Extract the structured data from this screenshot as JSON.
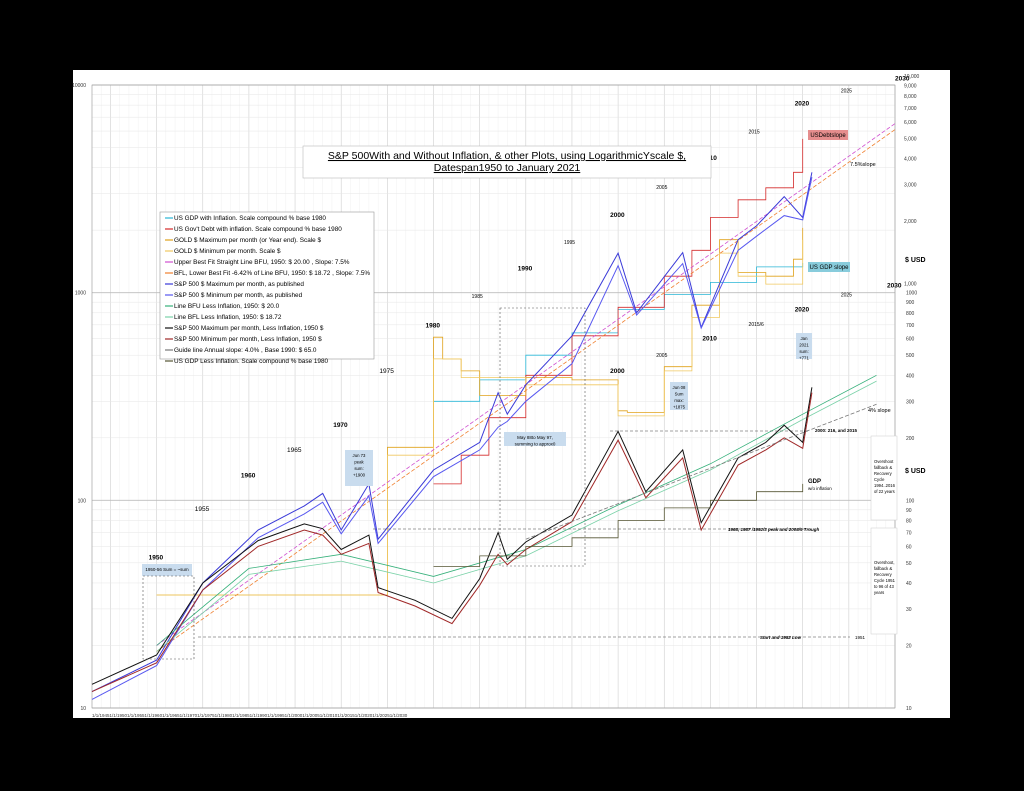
{
  "chart_data": {
    "type": "line",
    "title_line1": "S&P 500With and Without Inflation, & other Plots, using LogarithmicYscale $,",
    "title_line2": "Datespan1950 to January 2021",
    "y_scale": "log",
    "ylim": [
      10,
      10000
    ],
    "xlim": [
      1943,
      2030
    ],
    "grid": true,
    "legend_position": "top-left",
    "y_unit_label": "$ USD",
    "left_ticks": [
      "10000",
      "1000",
      "100",
      "10"
    ],
    "right_ticks_high": [
      "10,000",
      "9,000",
      "8,000",
      "7,000",
      "6,000",
      "5,000",
      "4,000",
      "3,000",
      "2,000",
      "1,000"
    ],
    "right_ticks_low": [
      "1000",
      "900",
      "800",
      "700",
      "600",
      "500",
      "400",
      "300",
      "200",
      "100",
      "90",
      "80",
      "70",
      "60",
      "50",
      "40",
      "30",
      "20",
      "10"
    ],
    "x_tick_text": "1/1/19451/1/19501/1/19551/1/19601/1/19651/1/19701/1/19751/1/19801/1/19851/1/19901/1/19951/1/20001/1/20051/1/20101/1/20151/1/20201/1/20251/1/2030",
    "series": [
      {
        "name": "US GDP with Inflation. Scale compound % base 1980",
        "color": "#29b6d6",
        "x": [
          1980,
          1985,
          1990,
          1995,
          2000,
          2005,
          2010,
          2015,
          2020
        ],
        "y": [
          300,
          380,
          500,
          640,
          830,
          980,
          1120,
          1330,
          1390
        ]
      },
      {
        "name": "US Gov't Debt with inflation. Scale compound % base 1980",
        "color": "#d42a2a",
        "x": [
          1980,
          1983,
          1986,
          1990,
          1995,
          2000,
          2005,
          2008,
          2010,
          2013,
          2016,
          2019,
          2020
        ],
        "y": [
          120,
          165,
          250,
          400,
          620,
          850,
          1200,
          1600,
          2300,
          2800,
          3200,
          3800,
          5500
        ]
      },
      {
        "name": "GOLD $ Maximum per month (or Year end). Scale $",
        "color": "#e0a21a",
        "x": [
          1950,
          1972,
          1975,
          1980,
          1981,
          1983,
          1985,
          1990,
          1995,
          2000,
          2001,
          2005,
          2008,
          2011,
          2013,
          2016,
          2019,
          2020
        ],
        "y": [
          35,
          35,
          180,
          610,
          480,
          420,
          320,
          390,
          380,
          270,
          265,
          440,
          870,
          1800,
          1250,
          1200,
          1450,
          2050
        ]
      },
      {
        "name": "GOLD $ Minimum per month. Scale $",
        "color": "#f0c860",
        "x": [
          1950,
          1972,
          1975,
          1980,
          1983,
          1990,
          2000,
          2005,
          2008,
          2011,
          2013,
          2016,
          2020
        ],
        "y": [
          35,
          35,
          165,
          480,
          390,
          360,
          255,
          420,
          760,
          1550,
          1200,
          1100,
          1800
        ]
      },
      {
        "name": "Upper Best Fit Straight Line BFU, 1950: $ 20.00 , Slope: 7.5%",
        "color": "#d050d0",
        "x": [
          1950,
          2030
        ],
        "y": [
          20.0,
          6520
        ]
      },
      {
        "name": "BFL, Lower Best Fit -6.42% of Line BFU, 1950: $ 18.72 , Slope: 7.5%",
        "color": "#f08030",
        "x": [
          1950,
          2030
        ],
        "y": [
          18.72,
          6100
        ]
      },
      {
        "name": "S&P 500 $ Maximum per month, as published",
        "color": "#3a3ad8",
        "x": [
          1943,
          1950,
          1955,
          1961,
          1966,
          1968,
          1970,
          1973,
          1974,
          1980,
          1985,
          1987,
          1988,
          1990,
          1995,
          2000,
          2002,
          2007,
          2009,
          2013,
          2015,
          2018,
          2020,
          2021
        ],
        "y": [
          12,
          17,
          40,
          72,
          94,
          108,
          72,
          120,
          65,
          140,
          190,
          330,
          260,
          360,
          620,
          1550,
          800,
          1560,
          680,
          1800,
          2100,
          2900,
          2300,
          3800
        ]
      },
      {
        "name": "S&P 500 $ Minimum per month, as published",
        "color": "#5858f0",
        "x": [
          1943,
          1950,
          1955,
          1961,
          1966,
          1968,
          1970,
          1973,
          1974,
          1980,
          1985,
          1987,
          1988,
          1990,
          1995,
          2000,
          2002,
          2007,
          2009,
          2013,
          2015,
          2018,
          2020,
          2021
        ],
        "y": [
          11,
          16,
          37,
          66,
          86,
          98,
          69,
          105,
          62,
          130,
          175,
          225,
          240,
          300,
          455,
          1350,
          780,
          1380,
          675,
          1600,
          1870,
          2350,
          2240,
          3600
        ]
      },
      {
        "name": "Line BFU Less Inflation, 1950: $ 20.0",
        "color": "#35b07a",
        "x": [
          1950,
          1960,
          1970,
          1980,
          1990,
          2000,
          2010,
          2020,
          2028
        ],
        "y": [
          20,
          47,
          55,
          43,
          58,
          95,
          150,
          260,
          400
        ]
      },
      {
        "name": "Line BFL Less Inflation, 1950: $ 18.72",
        "color": "#7ad2a8",
        "x": [
          1950,
          1960,
          1970,
          1980,
          1990,
          2000,
          2010,
          2020,
          2028
        ],
        "y": [
          18.72,
          44,
          51,
          40,
          54,
          89,
          140,
          245,
          375
        ]
      },
      {
        "name": "S&P 500 Maximum per month, Less Inflation, 1950 $",
        "color": "#111111",
        "x": [
          1943,
          1950,
          1955,
          1961,
          1966,
          1968,
          1970,
          1973,
          1974,
          1978,
          1982,
          1985,
          1987,
          1988,
          1990,
          1995,
          2000,
          2003,
          2007,
          2009,
          2013,
          2016,
          2018,
          2020,
          2021
        ],
        "y": [
          13,
          18,
          40,
          64,
          77,
          73,
          58,
          68,
          38,
          33,
          27,
          42,
          70,
          52,
          63,
          85,
          215,
          110,
          175,
          78,
          160,
          190,
          230,
          190,
          350
        ]
      },
      {
        "name": "S&P 500 Minimum per month, Less Inflation, 1950 $",
        "color": "#a02828",
        "x": [
          1943,
          1950,
          1955,
          1961,
          1966,
          1968,
          1970,
          1973,
          1974,
          1978,
          1982,
          1985,
          1987,
          1988,
          1990,
          1995,
          2000,
          2003,
          2007,
          2009,
          2013,
          2016,
          2018,
          2020,
          2021
        ],
        "y": [
          12,
          16.5,
          37,
          60,
          72,
          68,
          55,
          62,
          36,
          31,
          25.5,
          39,
          55,
          49,
          58,
          79,
          195,
          103,
          160,
          72,
          148,
          175,
          200,
          178,
          330
        ]
      },
      {
        "name": "Guide line Annual slope: 4.0% , Base 1990: $ 65.0",
        "color": "#777777",
        "dash": true,
        "x": [
          1990,
          2028
        ],
        "y": [
          65,
          290
        ]
      },
      {
        "name": "US GDP Less Inflation. Scale compound % base 1980",
        "color": "#555533",
        "x": [
          1980,
          1985,
          1990,
          1995,
          2000,
          2005,
          2010,
          2015,
          2020
        ],
        "y": [
          48,
          54,
          60,
          66,
          80,
          92,
          100,
          110,
          120
        ]
      }
    ],
    "annotations": {
      "decades_upper": [
        {
          "text": "1950",
          "x": 1950,
          "y": 52
        },
        {
          "text": "1955",
          "x": 1955,
          "y": 89
        },
        {
          "text": "1960",
          "x": 1960,
          "y": 129
        },
        {
          "text": "1965",
          "x": 1965,
          "y": 171
        },
        {
          "text": "1970",
          "x": 1970,
          "y": 225
        },
        {
          "text": "1975",
          "x": 1975,
          "y": 410
        },
        {
          "text": "1980",
          "x": 1980,
          "y": 680
        },
        {
          "text": "1985",
          "x": 1985,
          "y": 940
        },
        {
          "text": "1990",
          "x": 1990,
          "y": 1280
        },
        {
          "text": "1995",
          "x": 1995,
          "y": 1720
        },
        {
          "text": "2000",
          "x": 2000,
          "y": 2320
        },
        {
          "text": "2005",
          "x": 2005,
          "y": 3150
        },
        {
          "text": "2010",
          "x": 2010,
          "y": 4350
        },
        {
          "text": "2015",
          "x": 2015,
          "y": 5850
        },
        {
          "text": "2020",
          "x": 2020,
          "y": 7960
        },
        {
          "text": "2025",
          "x": 2025,
          "y": 9200
        },
        {
          "text": "2030",
          "x": 2030,
          "y": 10500
        }
      ],
      "decades_lower": [
        {
          "text": "2000",
          "x": 2000,
          "y": 410
        },
        {
          "text": "2005",
          "x": 2005,
          "y": 490
        },
        {
          "text": "2010",
          "x": 2010,
          "y": 590
        },
        {
          "text": "2015/6",
          "x": 2015,
          "y": 690
        },
        {
          "text": "2020",
          "x": 2020,
          "y": 810
        },
        {
          "text": "2025",
          "x": 2025,
          "y": 960
        },
        {
          "text": "2030",
          "x": 2030,
          "y": 1060
        }
      ],
      "usdebt_label": "USDebtslope",
      "slope75_label": "7.5%slope",
      "usgdp_label": "US GDP slope",
      "slope4_label": "4% slope",
      "gdp_noinf_line1": "GDP",
      "gdp_noinf_line2": "w/o inflation",
      "box_1950s": "1950-56 Sum = ~sum",
      "box_jun73": "Jun 73 peak sum: +1900",
      "box_may88": "May 88to May 97, summing to approx0",
      "box_jun08": "Jun 08 Sum max: +1875",
      "box_jan2021": "Jan 2021 sum: +771",
      "peak_line_text": "2000: 216, and 2015",
      "trough_line_text": "1968,  1987 /1992/3 peak  and 2008/9 Trough",
      "low_line_text": "Start and 1982 Low",
      "low_line_year": "1951",
      "overshoot_upper": "Overshoot fallback & Recovery Cycle 1994..2016 of 22 years",
      "overshoot_lower": "Overshoot, fallback & Recovery Cycle 1951 to 96 of 43 years"
    }
  }
}
